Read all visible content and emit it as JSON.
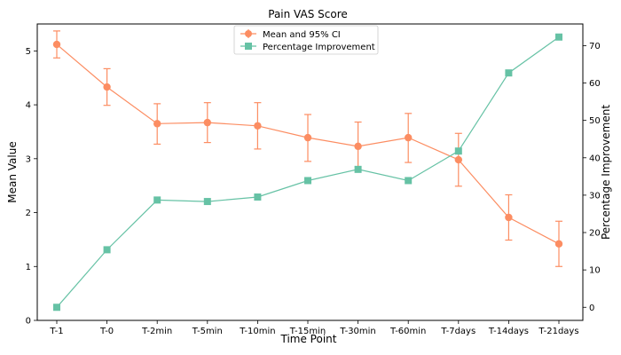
{
  "chart_data": {
    "type": "line",
    "title": "Pain VAS Score",
    "xlabel": "Time Point",
    "ylabel": "Mean Value",
    "y2label": "Percentage Improvement",
    "categories": [
      "T-1",
      "T-0",
      "T-2min",
      "T-5min",
      "T-10min",
      "T-15min",
      "T-30min",
      "T-60min",
      "T-7days",
      "T-14days",
      "T-21days"
    ],
    "ylim": [
      0,
      5.5
    ],
    "y2lim": [
      -3.5,
      75.8
    ],
    "yticks": [
      "0",
      "1",
      "2",
      "3",
      "4",
      "5"
    ],
    "y2ticks": [
      "0",
      "10",
      "20",
      "30",
      "40",
      "50",
      "60",
      "70"
    ],
    "legend_position": "top-center",
    "grid": false,
    "series": [
      {
        "name": "Mean and 95% CI",
        "axis": "left",
        "color": "#fc8d62",
        "marker": "circle",
        "values": [
          5.12,
          4.33,
          3.65,
          3.67,
          3.61,
          3.39,
          3.23,
          3.39,
          2.98,
          1.91,
          1.42
        ],
        "ci_low": [
          4.87,
          3.99,
          3.27,
          3.3,
          3.18,
          2.95,
          2.79,
          2.93,
          2.49,
          1.49,
          1.0
        ],
        "ci_high": [
          5.37,
          4.67,
          4.02,
          4.04,
          4.04,
          3.82,
          3.68,
          3.84,
          3.47,
          2.33,
          1.84
        ]
      },
      {
        "name": "Percentage Improvement",
        "axis": "right",
        "color": "#66c2a5",
        "marker": "square",
        "values": [
          0.0,
          15.4,
          28.7,
          28.3,
          29.5,
          33.9,
          36.9,
          33.9,
          41.8,
          62.7,
          72.3
        ]
      }
    ]
  }
}
